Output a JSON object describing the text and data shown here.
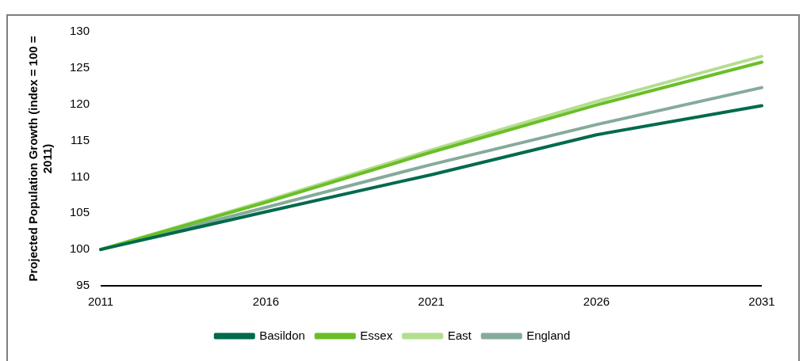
{
  "chart_data": {
    "type": "line",
    "ylabel": "Projected Population Growth (index = 100 = 2011)",
    "categories": [
      "2011",
      "2016",
      "2021",
      "2026",
      "2031"
    ],
    "ylim": [
      95,
      130
    ],
    "yticks": [
      95,
      100,
      105,
      110,
      115,
      120,
      125,
      130
    ],
    "grid": false,
    "legend": "bottom",
    "marker": "none",
    "line_style": "solid",
    "series": [
      {
        "name": "Basildon",
        "color": "#006a4d",
        "values": [
          100,
          105.2,
          110.3,
          115.8,
          119.8
        ]
      },
      {
        "name": "Essex",
        "color": "#6abf27",
        "values": [
          100,
          106.5,
          113.4,
          119.9,
          125.8
        ]
      },
      {
        "name": "East",
        "color": "#b3de8f",
        "values": [
          100,
          106.7,
          113.7,
          120.4,
          126.6
        ]
      },
      {
        "name": "England",
        "color": "#85ab9a",
        "values": [
          100,
          105.8,
          111.7,
          117.2,
          122.3
        ]
      }
    ]
  }
}
